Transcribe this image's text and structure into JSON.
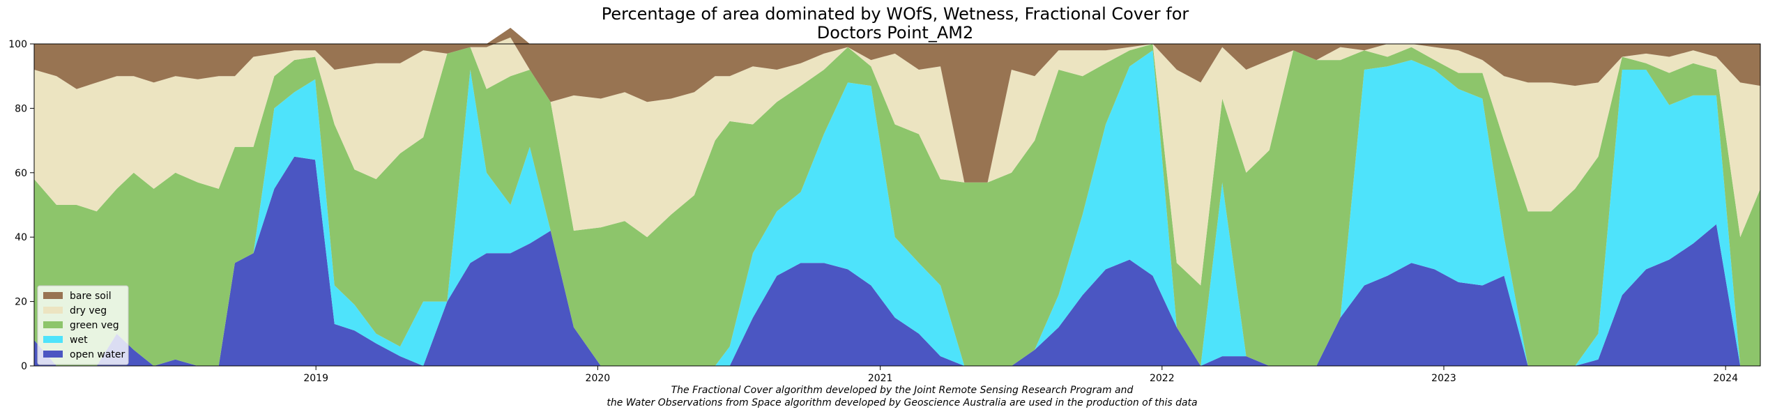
{
  "chart_data": {
    "type": "area",
    "title_lines": [
      "Percentage of area dominated by WOfS, Wetness, Fractional Cover for",
      "Doctors Point_AM2"
    ],
    "caption_lines": [
      "The Fractional Cover algorithm developed by the Joint Remote Sensing Research Program and",
      "the Water Observations from Space algorithm developed by Geoscience Australia are used in the production of this data"
    ],
    "xlim": [
      "2018-01-01",
      "2024-02-15"
    ],
    "ylim": [
      0,
      100
    ],
    "x_ticks": [
      {
        "date": "2019-01-01",
        "label": "2019"
      },
      {
        "date": "2020-01-01",
        "label": "2020"
      },
      {
        "date": "2021-01-01",
        "label": "2021"
      },
      {
        "date": "2022-01-01",
        "label": "2022"
      },
      {
        "date": "2023-01-01",
        "label": "2023"
      },
      {
        "date": "2024-01-01",
        "label": "2024"
      }
    ],
    "y_ticks": [
      0,
      20,
      40,
      60,
      80,
      100
    ],
    "legend_position": "lower-left",
    "stacked": true,
    "x": [
      "2018-01-01",
      "2018-01-30",
      "2018-02-25",
      "2018-03-23",
      "2018-04-18",
      "2018-05-10",
      "2018-06-05",
      "2018-07-03",
      "2018-08-01",
      "2018-08-28",
      "2018-09-18",
      "2018-10-12",
      "2018-11-08",
      "2018-12-04",
      "2018-12-31",
      "2019-01-25",
      "2019-02-20",
      "2019-03-20",
      "2019-04-20",
      "2019-05-20",
      "2019-06-20",
      "2019-07-20",
      "2019-08-10",
      "2019-09-10",
      "2019-10-05",
      "2019-11-01",
      "2019-12-01",
      "2020-01-05",
      "2020-02-05",
      "2020-03-05",
      "2020-04-05",
      "2020-05-05",
      "2020-06-01",
      "2020-06-20",
      "2020-07-20",
      "2020-08-20",
      "2020-09-20",
      "2020-10-20",
      "2020-11-20",
      "2020-12-20",
      "2021-01-20",
      "2021-02-20",
      "2021-03-20",
      "2021-04-20",
      "2021-05-20",
      "2021-06-20",
      "2021-07-20",
      "2021-08-20",
      "2021-09-20",
      "2021-10-20",
      "2021-11-20",
      "2021-12-20",
      "2022-01-20",
      "2022-02-20",
      "2022-03-20",
      "2022-04-20",
      "2022-05-20",
      "2022-06-20",
      "2022-07-20",
      "2022-08-20",
      "2022-09-20",
      "2022-10-20",
      "2022-11-20",
      "2022-12-20",
      "2023-01-20",
      "2023-02-20",
      "2023-03-20",
      "2023-04-20",
      "2023-05-20",
      "2023-06-20",
      "2023-07-20",
      "2023-08-20",
      "2023-09-20",
      "2023-10-20",
      "2023-11-20",
      "2023-12-20",
      "2024-01-20",
      "2024-02-15"
    ],
    "series": [
      {
        "name": "open water",
        "color": "#4b56c2",
        "values": [
          8,
          0,
          0,
          0,
          10,
          5,
          0,
          2,
          0,
          0,
          32,
          35,
          55,
          65,
          64,
          13,
          11,
          7,
          3,
          0,
          20,
          32,
          35,
          35,
          38,
          42,
          12,
          0,
          0,
          0,
          0,
          0,
          0,
          0,
          15,
          28,
          32,
          32,
          30,
          25,
          15,
          10,
          3,
          0,
          0,
          0,
          5,
          12,
          22,
          30,
          33,
          28,
          12,
          0,
          3,
          3,
          0,
          0,
          0,
          15,
          25,
          28,
          32,
          30,
          26,
          25,
          28,
          0,
          0,
          0,
          2,
          22,
          30,
          33,
          38,
          44,
          0,
          0
        ]
      },
      {
        "name": "wet",
        "color": "#4ee3fb",
        "values": [
          0,
          0,
          0,
          0,
          0,
          0,
          0,
          0,
          0,
          0,
          0,
          0,
          25,
          20,
          25,
          12,
          8,
          3,
          3,
          20,
          0,
          60,
          25,
          15,
          30,
          0,
          0,
          0,
          0,
          0,
          0,
          0,
          0,
          6,
          20,
          20,
          22,
          40,
          58,
          62,
          25,
          22,
          22,
          0,
          0,
          0,
          0,
          10,
          25,
          45,
          60,
          70,
          0,
          0,
          54,
          0,
          0,
          0,
          0,
          0,
          67,
          65,
          63,
          62,
          60,
          58,
          12,
          0,
          0,
          0,
          8,
          70,
          62,
          48,
          46,
          40,
          0,
          0
        ]
      },
      {
        "name": "green veg",
        "color": "#8dc56b",
        "values": [
          50,
          50,
          50,
          48,
          45,
          55,
          55,
          58,
          57,
          55,
          36,
          33,
          10,
          10,
          7,
          50,
          42,
          48,
          60,
          51,
          77,
          7,
          26,
          40,
          24,
          40,
          30,
          43,
          45,
          40,
          47,
          53,
          70,
          70,
          40,
          34,
          33,
          20,
          11,
          6,
          35,
          40,
          33,
          57,
          57,
          60,
          65,
          70,
          43,
          19,
          5,
          2,
          20,
          25,
          26,
          57,
          67,
          98,
          95,
          80,
          6,
          3,
          4,
          3,
          5,
          8,
          30,
          48,
          48,
          55,
          55,
          4,
          2,
          10,
          10,
          8,
          40,
          55
        ]
      },
      {
        "name": "dry veg",
        "color": "#ece4c1",
        "values": [
          34,
          40,
          36,
          40,
          35,
          30,
          33,
          30,
          32,
          35,
          22,
          28,
          7,
          3,
          2,
          17,
          32,
          36,
          28,
          27,
          0,
          0,
          13,
          12,
          0,
          0,
          42,
          40,
          40,
          42,
          36,
          32,
          20,
          14,
          18,
          10,
          7,
          5,
          0,
          2,
          22,
          20,
          35,
          0,
          0,
          32,
          20,
          6,
          8,
          4,
          1,
          0,
          60,
          63,
          16,
          32,
          28,
          0,
          0,
          4,
          0,
          4,
          1,
          4,
          7,
          4,
          20,
          40,
          40,
          32,
          23,
          0,
          3,
          5,
          4,
          4,
          48,
          32
        ]
      },
      {
        "name": "bare soil",
        "color": "#987452",
        "values": [
          8,
          10,
          14,
          12,
          10,
          10,
          12,
          10,
          11,
          10,
          10,
          4,
          3,
          2,
          2,
          8,
          7,
          6,
          6,
          2,
          3,
          1,
          1,
          3,
          8,
          18,
          16,
          17,
          15,
          18,
          17,
          15,
          10,
          10,
          7,
          8,
          6,
          3,
          1,
          5,
          3,
          8,
          7,
          43,
          43,
          8,
          10,
          2,
          2,
          2,
          1,
          0,
          8,
          12,
          1,
          8,
          5,
          2,
          5,
          1,
          2,
          0,
          0,
          1,
          2,
          5,
          10,
          12,
          12,
          13,
          12,
          4,
          3,
          4,
          2,
          4,
          12,
          13
        ]
      }
    ]
  }
}
